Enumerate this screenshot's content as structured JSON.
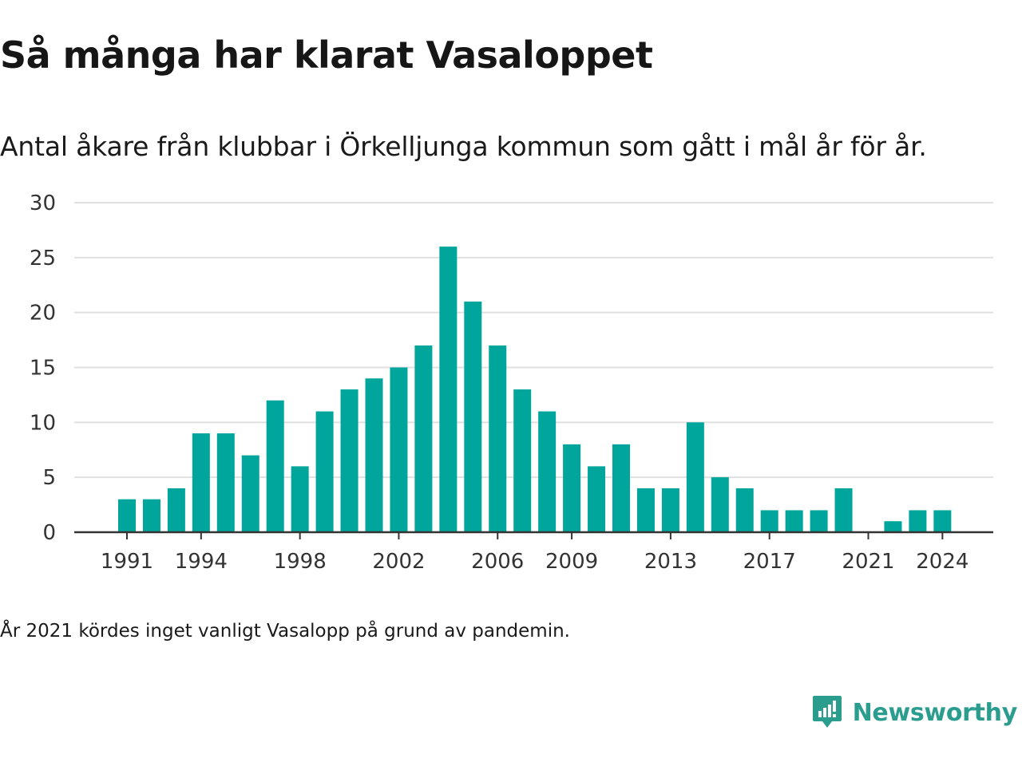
{
  "title": "Så många har klarat Vasaloppet",
  "subtitle": "Antal åkare från klubbar i Örkelljunga kommun som gått i mål år för år.",
  "note": "År 2021 kördes inget vanligt Vasalopp på grund av pandemin.",
  "brand": {
    "name": "Newsworthy",
    "icon": "newsworthy-chart-bubble-icon",
    "color": "#2a9d8f"
  },
  "chart_data": {
    "type": "bar",
    "categories": [
      1991,
      1992,
      1993,
      1994,
      1995,
      1996,
      1997,
      1998,
      1999,
      2000,
      2001,
      2002,
      2003,
      2004,
      2005,
      2006,
      2007,
      2008,
      2009,
      2010,
      2011,
      2012,
      2013,
      2014,
      2015,
      2016,
      2017,
      2018,
      2019,
      2020,
      2021,
      2022,
      2023,
      2024
    ],
    "values": [
      3,
      3,
      4,
      9,
      9,
      7,
      12,
      6,
      11,
      13,
      14,
      15,
      17,
      26,
      21,
      17,
      13,
      11,
      8,
      6,
      8,
      4,
      4,
      10,
      5,
      4,
      2,
      2,
      2,
      4,
      0,
      1,
      2,
      2
    ],
    "x_tick_labels": [
      "1991",
      "1994",
      "1998",
      "2002",
      "2006",
      "2009",
      "2013",
      "2017",
      "2021",
      "2024"
    ],
    "y_ticks": [
      0,
      5,
      10,
      15,
      20,
      25,
      30
    ],
    "ylim": [
      0,
      30
    ],
    "xlabel": "",
    "ylabel": "",
    "grid": true,
    "bar_color": "#00a59b",
    "grid_color": "#e0e0e0",
    "axis_color": "#333333"
  }
}
